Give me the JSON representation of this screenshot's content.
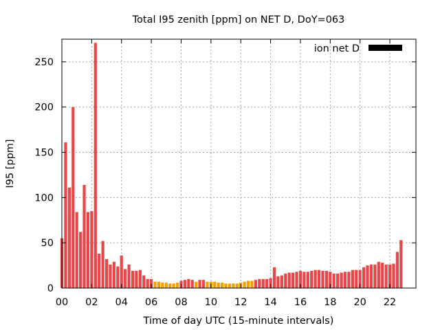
{
  "chart_data": {
    "type": "bar",
    "title": "Total I95 zenith [ppm] on NET D, DoY=063",
    "xlabel": "Time of day UTC (15-minute intervals)",
    "ylabel": "I95 [ppm]",
    "xlim": [
      0,
      23.75
    ],
    "ylim": [
      0,
      275
    ],
    "xticks": [
      "00",
      "02",
      "04",
      "06",
      "08",
      "10",
      "12",
      "14",
      "16",
      "18",
      "20",
      "22"
    ],
    "yticks": [
      "0",
      "50",
      "100",
      "150",
      "200",
      "250"
    ],
    "grid": true,
    "legend": {
      "label": "ion net D",
      "position": "top-right",
      "swatch_color": "#000000"
    },
    "bar_colors": {
      "high": "#e8474a",
      "low": "#f5a000"
    },
    "interval_hours": 0.25,
    "values": [
      55,
      161,
      111,
      200,
      84,
      62,
      114,
      84,
      85,
      271,
      38,
      52,
      32,
      26,
      29,
      24,
      36,
      21,
      26,
      19,
      19,
      20,
      14,
      10,
      10,
      7,
      7,
      6,
      6,
      5,
      5,
      6,
      8,
      9,
      10,
      9,
      7,
      9,
      9,
      7,
      7,
      7,
      6,
      6,
      5,
      5,
      5,
      5,
      6,
      7,
      8,
      8,
      9,
      10,
      10,
      10,
      11,
      23,
      13,
      14,
      16,
      17,
      17,
      18,
      19,
      18,
      18,
      19,
      20,
      20,
      19,
      19,
      18,
      16,
      16,
      17,
      18,
      18,
      20,
      20,
      20,
      23,
      25,
      26,
      26,
      29,
      28,
      26,
      26,
      27,
      40,
      53
    ],
    "colors": [
      "high",
      "high",
      "high",
      "high",
      "high",
      "high",
      "high",
      "high",
      "high",
      "high",
      "high",
      "high",
      "high",
      "high",
      "high",
      "high",
      "high",
      "high",
      "high",
      "high",
      "high",
      "high",
      "high",
      "high",
      "high",
      "low",
      "low",
      "low",
      "low",
      "low",
      "low",
      "low",
      "high",
      "high",
      "high",
      "high",
      "low",
      "high",
      "high",
      "low",
      "low",
      "low",
      "low",
      "low",
      "low",
      "low",
      "low",
      "low",
      "low",
      "low",
      "low",
      "low",
      "high",
      "high",
      "high",
      "high",
      "high",
      "high",
      "high",
      "high",
      "high",
      "high",
      "high",
      "high",
      "high",
      "high",
      "high",
      "high",
      "high",
      "high",
      "high",
      "high",
      "high",
      "high",
      "high",
      "high",
      "high",
      "high",
      "high",
      "high",
      "high",
      "high",
      "high",
      "high",
      "high",
      "high",
      "high",
      "high",
      "high",
      "high",
      "high",
      "high"
    ]
  }
}
